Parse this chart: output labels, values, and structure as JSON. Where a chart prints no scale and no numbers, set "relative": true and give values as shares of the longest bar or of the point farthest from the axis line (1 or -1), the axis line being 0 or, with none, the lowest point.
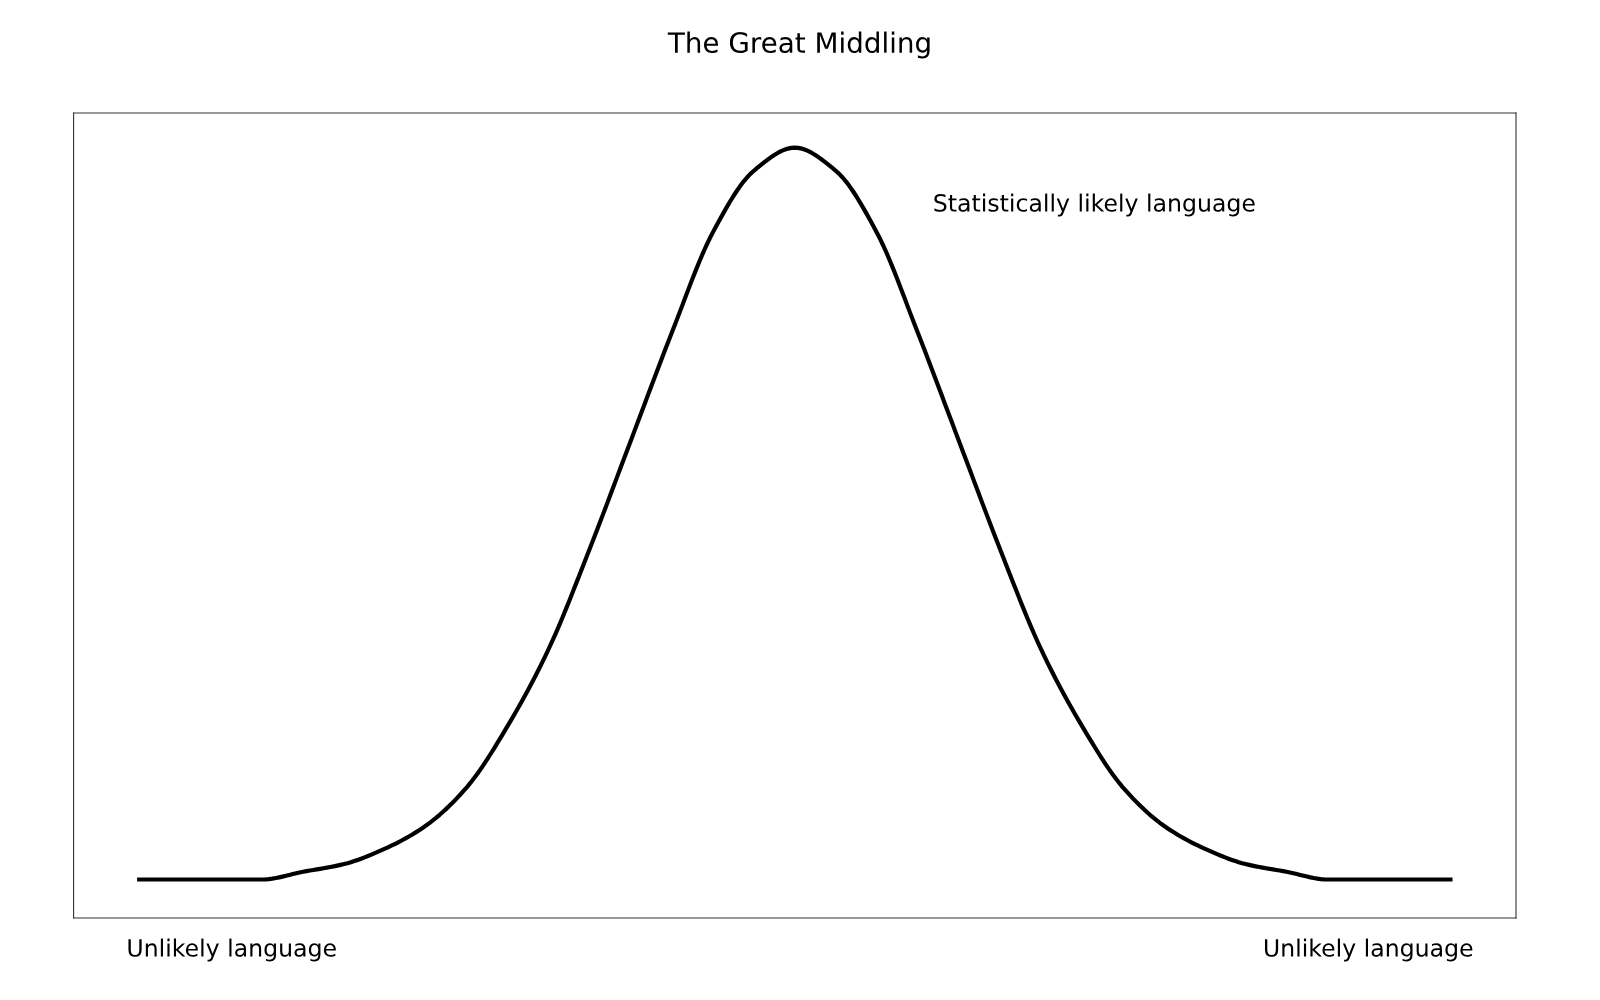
{
  "chart_data": {
    "type": "line",
    "title": "The Great Middling",
    "relative": true,
    "tick_labels": false,
    "marker": "none",
    "line_style": "solid",
    "categories": [
      null,
      null,
      null,
      null,
      null,
      null,
      null,
      null,
      null,
      null,
      null,
      null,
      null,
      null,
      null,
      null,
      null,
      null,
      null,
      null,
      null,
      null,
      null,
      null,
      null,
      null,
      null,
      null,
      null,
      null,
      null,
      null,
      null
    ],
    "series": [
      {
        "color": "#000000",
        "values": [
          0.05,
          0.05,
          0.05,
          0.05,
          0.06,
          0.07,
          0.09,
          0.12,
          0.17,
          0.25,
          0.35,
          0.48,
          0.62,
          0.76,
          0.89,
          0.97,
          1,
          0.97,
          0.89,
          0.76,
          0.62,
          0.48,
          0.35,
          0.25,
          0.17,
          0.12,
          0.09,
          0.07,
          0.06,
          0.05,
          0.05,
          0.05,
          0.05
        ]
      }
    ],
    "annotations": [
      "Statistically likely language",
      "Unlikely language",
      "Unlikely language"
    ]
  }
}
